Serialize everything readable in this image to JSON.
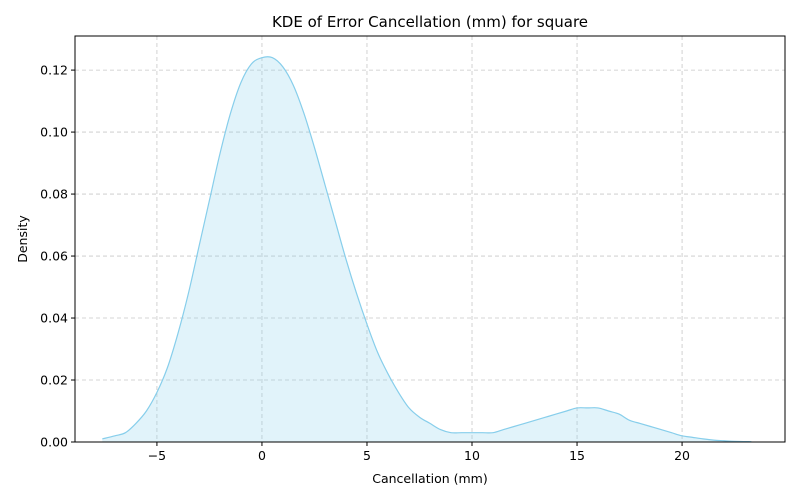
{
  "chart_data": {
    "type": "area",
    "title": "KDE of Error Cancellation (mm) for square",
    "xlabel": "Cancellation (mm)",
    "ylabel": "Density",
    "xlim": [
      -8.9,
      24.9
    ],
    "ylim": [
      0,
      0.131
    ],
    "xticks": [
      -5,
      0,
      5,
      10,
      15,
      20
    ],
    "xtick_labels": [
      "−5",
      "0",
      "5",
      "10",
      "15",
      "20"
    ],
    "yticks": [
      0.0,
      0.02,
      0.04,
      0.06,
      0.08,
      0.1,
      0.12
    ],
    "ytick_labels": [
      "0.00",
      "0.02",
      "0.04",
      "0.06",
      "0.08",
      "0.10",
      "0.12"
    ],
    "grid": true,
    "line_color": "#87ceeb",
    "fill_color": "#87ceeb",
    "fill_opacity": 0.25,
    "series": [
      {
        "x": [
          -7.6,
          -7.0,
          -6.5,
          -6.0,
          -5.5,
          -5.0,
          -4.5,
          -4.0,
          -3.5,
          -3.0,
          -2.5,
          -2.0,
          -1.5,
          -1.0,
          -0.5,
          0.0,
          0.5,
          1.0,
          1.5,
          2.0,
          2.5,
          3.0,
          3.5,
          4.0,
          4.5,
          5.0,
          5.5,
          6.0,
          6.5,
          7.0,
          7.5,
          8.0,
          8.5,
          9.0,
          9.5,
          10.0,
          10.5,
          11.0,
          11.5,
          12.0,
          12.5,
          13.0,
          13.5,
          14.0,
          14.5,
          15.0,
          15.5,
          16.0,
          16.5,
          17.0,
          17.5,
          18.0,
          18.5,
          19.0,
          19.5,
          20.0,
          20.5,
          21.0,
          21.5,
          22.0,
          22.5,
          23.3
        ],
        "y": [
          0.001,
          0.002,
          0.003,
          0.006,
          0.01,
          0.016,
          0.024,
          0.035,
          0.048,
          0.063,
          0.078,
          0.093,
          0.106,
          0.116,
          0.122,
          0.124,
          0.124,
          0.121,
          0.115,
          0.106,
          0.095,
          0.083,
          0.071,
          0.059,
          0.048,
          0.038,
          0.029,
          0.022,
          0.016,
          0.011,
          0.008,
          0.006,
          0.004,
          0.003,
          0.003,
          0.003,
          0.003,
          0.003,
          0.004,
          0.005,
          0.006,
          0.007,
          0.008,
          0.009,
          0.01,
          0.011,
          0.011,
          0.011,
          0.01,
          0.009,
          0.007,
          0.006,
          0.005,
          0.004,
          0.003,
          0.002,
          0.0015,
          0.001,
          0.0006,
          0.0004,
          0.0002,
          0.0001
        ]
      }
    ]
  }
}
